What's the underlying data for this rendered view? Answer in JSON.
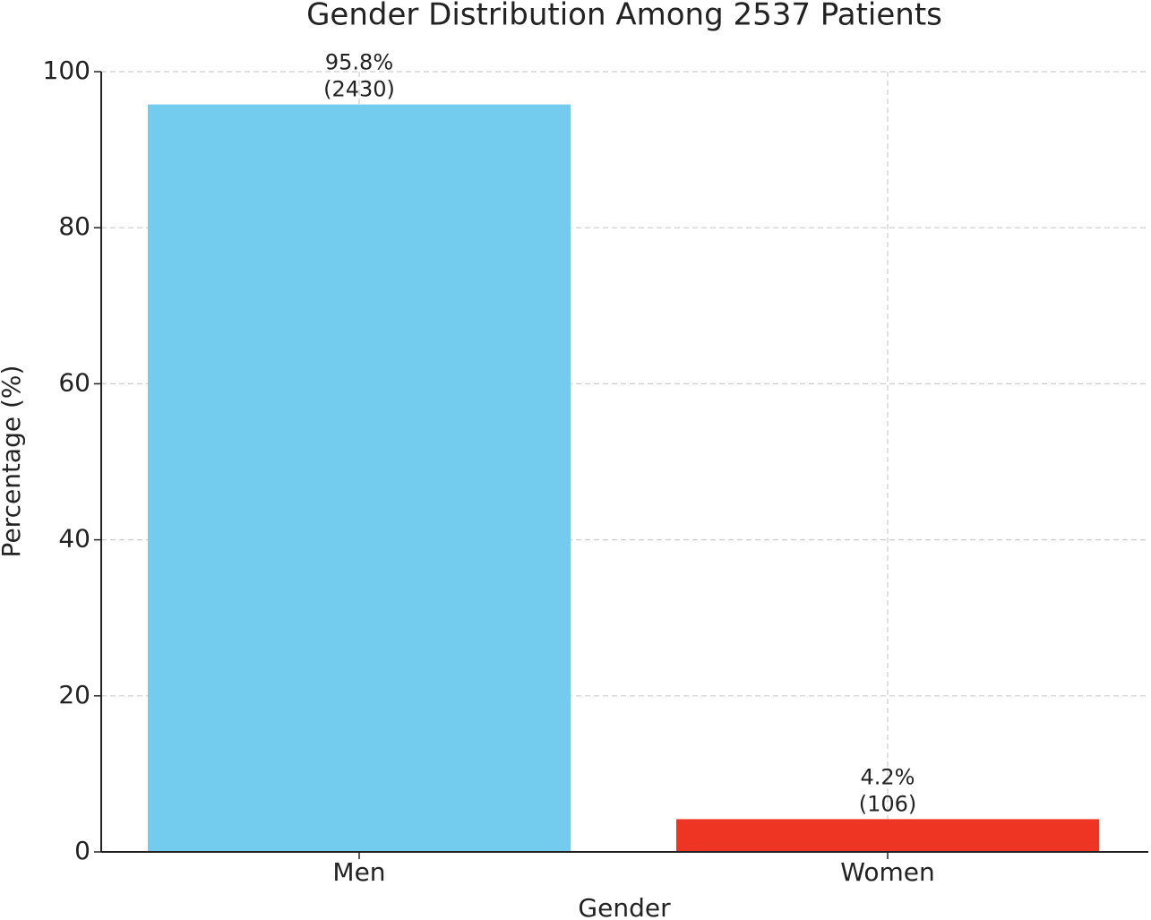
{
  "chart_data": {
    "type": "bar",
    "title": "Gender Distribution Among 2537 Patients",
    "xlabel": "Gender",
    "ylabel": "Percentage (%)",
    "categories": [
      "Men",
      "Women"
    ],
    "values": [
      95.8,
      4.2
    ],
    "value_labels": [
      "95.8%\n(2430)",
      "4.2%\n(106)"
    ],
    "colors": [
      "#73cbee",
      "#ee3524"
    ],
    "ylim": [
      0,
      100
    ],
    "yticks": [
      0,
      20,
      40,
      60,
      80,
      100
    ],
    "grid": true
  }
}
